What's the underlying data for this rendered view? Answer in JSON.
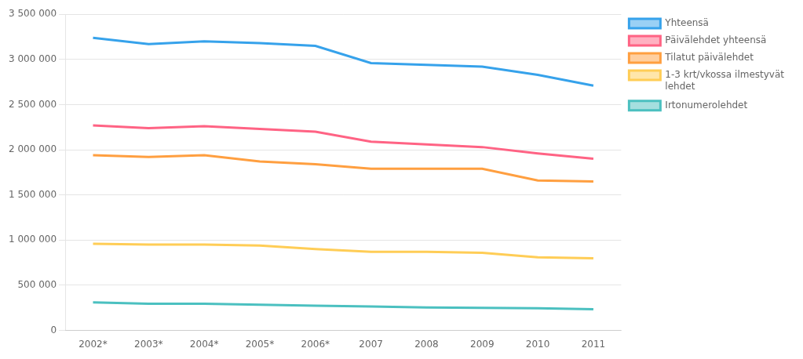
{
  "chart_data": {
    "type": "line",
    "categories": [
      "2002*",
      "2003*",
      "2004*",
      "2005*",
      "2006*",
      "2007",
      "2008",
      "2009",
      "2010",
      "2011"
    ],
    "series": [
      {
        "name": "Yhteensä",
        "values": [
          3240000,
          3170000,
          3200000,
          3180000,
          3150000,
          2960000,
          2940000,
          2920000,
          2830000,
          2710000
        ]
      },
      {
        "name": "Päivälehdet yhteensä",
        "values": [
          2270000,
          2240000,
          2260000,
          2230000,
          2200000,
          2090000,
          2060000,
          2030000,
          1960000,
          1900000
        ]
      },
      {
        "name": "Tilatut päivälehdet",
        "values": [
          1940000,
          1920000,
          1940000,
          1870000,
          1840000,
          1790000,
          1790000,
          1790000,
          1660000,
          1650000
        ]
      },
      {
        "name": "1-3 krt/vkossa ilmestyvät\nlehdet",
        "values": [
          960000,
          950000,
          950000,
          940000,
          900000,
          870000,
          870000,
          860000,
          810000,
          800000
        ]
      },
      {
        "name": "Irtonumerolehdet",
        "values": [
          310000,
          295000,
          295000,
          285000,
          275000,
          265000,
          255000,
          250000,
          245000,
          235000
        ]
      }
    ],
    "ylim": [
      0,
      3500000
    ],
    "yticks": [
      0,
      {
        "value": 500000,
        "label": "500 000"
      },
      {
        "value": 1000000,
        "label": "1 000 000"
      },
      {
        "value": 1500000,
        "label": "1 500 000"
      },
      {
        "value": 2000000,
        "label": "2 000 000"
      },
      {
        "value": 2500000,
        "label": "2 500 000"
      },
      {
        "value": 3000000,
        "label": "3 000 000"
      },
      {
        "value": 3500000,
        "label": "3 500 000"
      }
    ],
    "grid": true,
    "legend": "right"
  }
}
